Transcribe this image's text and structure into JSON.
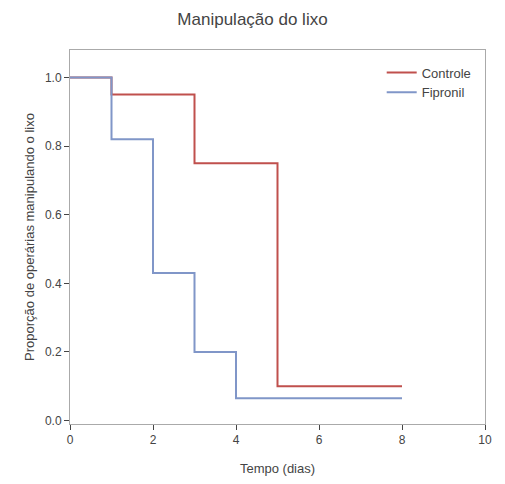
{
  "chart_data": {
    "type": "line",
    "title": "Manipulação do lixo",
    "xlabel": "Tempo (dias)",
    "ylabel": "Proporção de operárias manipulando o lixo",
    "xlim": [
      0,
      10
    ],
    "ylim": [
      -0.01,
      1.08
    ],
    "xticks": [
      0,
      2,
      4,
      6,
      8,
      10
    ],
    "yticks": [
      {
        "value": 0,
        "label": "0.0"
      },
      0.2,
      0.4,
      0.6,
      0.8,
      {
        "value": 1,
        "label": "1.0"
      }
    ],
    "series": [
      {
        "name": "Controle",
        "color": "#c0504d",
        "x": [
          0,
          1,
          1,
          3,
          3,
          5,
          5,
          7,
          7,
          8
        ],
        "values": [
          1.0,
          1.0,
          0.95,
          0.95,
          0.75,
          0.75,
          0.1,
          0.1,
          0.1,
          0.1
        ]
      },
      {
        "name": "Fipronil",
        "color": "#8096c8",
        "x": [
          0,
          1,
          1,
          2,
          2,
          3,
          3,
          4,
          4,
          8
        ],
        "values": [
          1.0,
          1.0,
          0.82,
          0.82,
          0.43,
          0.43,
          0.2,
          0.2,
          0.065,
          0.065
        ]
      }
    ],
    "grid": false,
    "legend": "upper right"
  }
}
